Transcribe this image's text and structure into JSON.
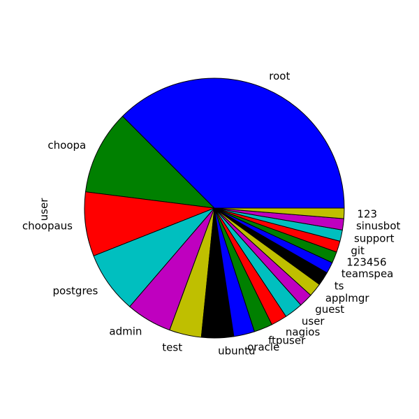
{
  "chart_data": {
    "type": "pie",
    "title": "",
    "ylabel": "user",
    "labels": [
      "root",
      "choopa",
      "choopaus",
      "postgres",
      "admin",
      "test",
      "ubuntu",
      "oracle",
      "ftpuser",
      "nagios",
      "user",
      "guest",
      "applmgr",
      "ts",
      "teamspea",
      "123456",
      "git",
      "support",
      "sinusbot",
      "123"
    ],
    "values": [
      37.5,
      10.5,
      8.0,
      7.7,
      5.7,
      4.0,
      4.0,
      2.6,
      2.3,
      2.0,
      2.3,
      1.7,
      1.7,
      1.7,
      1.4,
      1.4,
      1.4,
      1.4,
      1.4,
      1.3
    ],
    "colors": [
      "#0000ff",
      "#008000",
      "#ff0000",
      "#00bfbf",
      "#bf00bf",
      "#bfbf00",
      "#000000",
      "#0000ff",
      "#008000",
      "#ff0000",
      "#00bfbf",
      "#bf00bf",
      "#bfbf00",
      "#000000",
      "#0000ff",
      "#008000",
      "#ff0000",
      "#00bfbf",
      "#bf00bf",
      "#bfbf00"
    ],
    "start_angle_deg": 0,
    "direction": "counterclockwise",
    "edge_color": "#000000"
  }
}
